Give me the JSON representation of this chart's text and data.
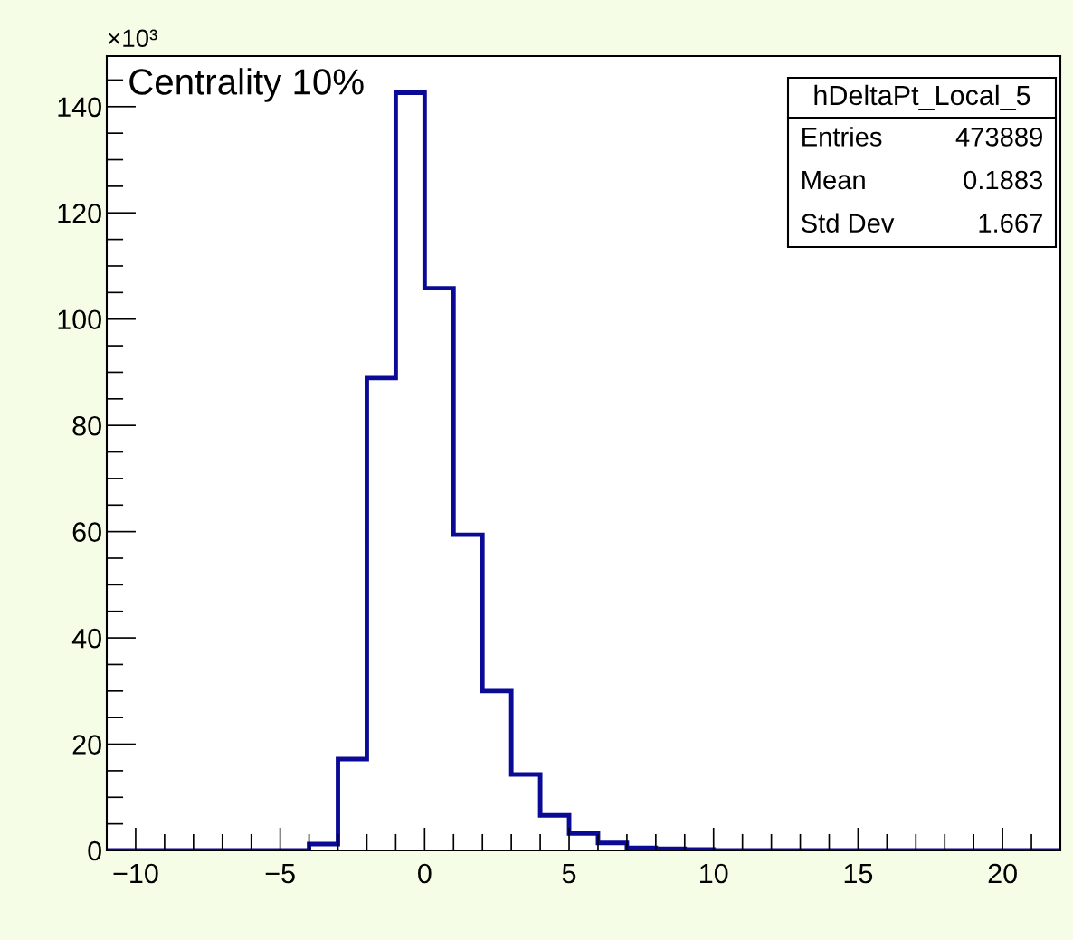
{
  "chart_data": {
    "type": "histogram",
    "bins": [
      -11,
      -10,
      -9,
      -8,
      -7,
      -6,
      -5,
      -4,
      -3,
      -2,
      -1,
      0,
      1,
      2,
      3,
      4,
      5,
      6,
      7,
      8,
      9,
      10,
      11,
      12,
      13,
      14,
      15,
      16,
      17,
      18,
      19,
      20,
      21,
      22
    ],
    "values": [
      0,
      0,
      0,
      0,
      0,
      0,
      0,
      1.2,
      17.2,
      88.9,
      142.6,
      105.8,
      59.4,
      30.0,
      14.3,
      6.6,
      3.2,
      1.4,
      0.5,
      0.3,
      0.2,
      0,
      0,
      0,
      0,
      0,
      0,
      0,
      0,
      0,
      0,
      0,
      0
    ],
    "color": "#0a0a96",
    "xlim": [
      -11,
      22
    ],
    "xticks": [
      {
        "value": -10,
        "label": "−10"
      },
      {
        "value": -5,
        "label": "−5"
      },
      0,
      5,
      10,
      15,
      20
    ],
    "ylim": [
      0,
      149.5
    ],
    "yticks": [
      0,
      20,
      40,
      60,
      80,
      100,
      120,
      140
    ],
    "grid": false,
    "annotations": [
      "×10³",
      "Centrality 10%",
      "hDeltaPt_Local_5",
      "Entries",
      "473889",
      "Mean",
      "0.1883",
      "Std Dev",
      "1.667"
    ]
  }
}
